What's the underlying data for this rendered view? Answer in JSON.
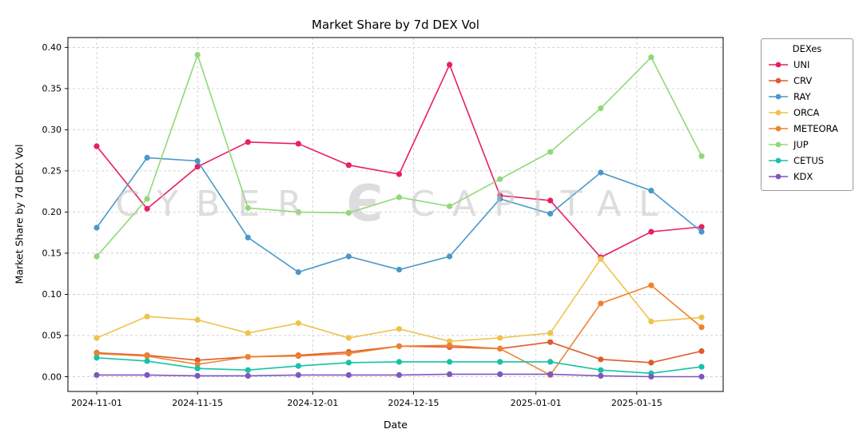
{
  "watermark": {
    "left": "CYBER",
    "logo_glyph": "Є",
    "right": "CAPITAL"
  },
  "chart_data": {
    "type": "line",
    "title": "Market Share by 7d DEX Vol",
    "xlabel": "Date",
    "ylabel": "Market Share by 7d DEX Vol",
    "legend_title": "DEXes",
    "legend_position": "right-outside",
    "grid": true,
    "x_range": [
      "2024-10-28",
      "2025-01-27"
    ],
    "ylim": [
      -0.018,
      0.412
    ],
    "xticks": [
      "2024-11-01",
      "2024-11-15",
      "2024-12-01",
      "2024-12-15",
      "2025-01-01",
      "2025-01-15"
    ],
    "yticks": [
      "0.00",
      "0.05",
      "0.10",
      "0.15",
      "0.20",
      "0.25",
      "0.30",
      "0.35",
      "0.40"
    ],
    "x": [
      "2024-11-01",
      "2024-11-08",
      "2024-11-15",
      "2024-11-22",
      "2024-11-29",
      "2024-12-06",
      "2024-12-13",
      "2024-12-20",
      "2024-12-27",
      "2025-01-03",
      "2025-01-10",
      "2025-01-17",
      "2025-01-24"
    ],
    "series": [
      {
        "name": "UNI",
        "color": "#e91e63",
        "values": [
          0.28,
          0.204,
          0.255,
          0.285,
          0.283,
          0.257,
          0.246,
          0.379,
          0.22,
          0.214,
          0.145,
          0.176,
          0.182
        ]
      },
      {
        "name": "CRV",
        "color": "#de5b2b",
        "values": [
          0.029,
          0.026,
          0.02,
          0.024,
          0.026,
          0.03,
          0.037,
          0.036,
          0.034,
          0.042,
          0.021,
          0.017,
          0.031
        ]
      },
      {
        "name": "RAY",
        "color": "#4a98c9",
        "values": [
          0.181,
          0.266,
          0.262,
          0.169,
          0.127,
          0.146,
          0.13,
          0.146,
          0.216,
          0.198,
          0.248,
          0.226,
          0.176
        ]
      },
      {
        "name": "ORCA",
        "color": "#f0c24b",
        "values": [
          0.047,
          0.073,
          0.069,
          0.053,
          0.065,
          0.047,
          0.058,
          0.043,
          0.047,
          0.053,
          0.143,
          0.067,
          0.072
        ]
      },
      {
        "name": "METEORA",
        "color": "#ee8130",
        "values": [
          0.028,
          0.025,
          0.015,
          0.024,
          0.025,
          0.028,
          0.037,
          0.038,
          0.034,
          0.002,
          0.089,
          0.111,
          0.06
        ]
      },
      {
        "name": "JUP",
        "color": "#92d878",
        "values": [
          0.146,
          0.216,
          0.391,
          0.205,
          0.2,
          0.199,
          0.218,
          0.207,
          0.24,
          0.273,
          0.326,
          0.388,
          0.268
        ]
      },
      {
        "name": "CETUS",
        "color": "#16c2a8",
        "values": [
          0.023,
          0.019,
          0.01,
          0.008,
          0.013,
          0.017,
          0.018,
          0.018,
          0.018,
          0.018,
          0.008,
          0.004,
          0.012
        ]
      },
      {
        "name": "KDX",
        "color": "#7e57c2",
        "values": [
          0.002,
          0.002,
          0.001,
          0.001,
          0.002,
          0.002,
          0.002,
          0.003,
          0.003,
          0.003,
          0.001,
          0.0,
          0.0
        ]
      }
    ]
  }
}
